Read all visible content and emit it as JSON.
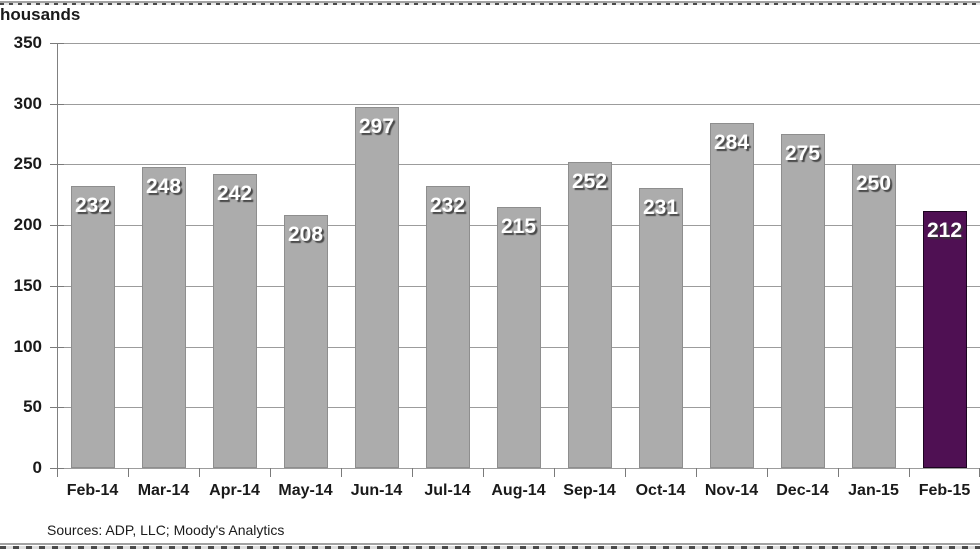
{
  "header": {
    "axis_unit_label": "housands"
  },
  "footer": {
    "source": "Sources: ADP, LLC; Moody's Analytics"
  },
  "colors": {
    "bar_default_fill": "#acacac",
    "bar_default_border": "#8e8e8e",
    "bar_highlight_fill": "#4f1053",
    "bar_highlight_border": "#1c0420",
    "gridline": "#9c9c9c",
    "axis": "#808080",
    "tick": "#7a7a7a",
    "text": "#1a1a1a",
    "bar_value_text": "#ffffff"
  },
  "chart_data": {
    "type": "bar",
    "title": "housands",
    "categories": [
      "Feb-14",
      "Mar-14",
      "Apr-14",
      "May-14",
      "Jun-14",
      "Jul-14",
      "Aug-14",
      "Sep-14",
      "Oct-14",
      "Nov-14",
      "Dec-14",
      "Jan-15",
      "Feb-15"
    ],
    "values": [
      232,
      248,
      242,
      208,
      297,
      232,
      215,
      252,
      231,
      284,
      275,
      250,
      212
    ],
    "highlight_index": 12,
    "data_labels_shown": true,
    "xlabel": "",
    "ylabel": "housands",
    "ylim": [
      0,
      350
    ],
    "ytick_step": 50,
    "yticks": [
      0,
      50,
      100,
      150,
      200,
      250,
      300,
      350
    ],
    "grid": true,
    "legend": false,
    "source_note": "Sources: ADP, LLC; Moody's Analytics"
  }
}
